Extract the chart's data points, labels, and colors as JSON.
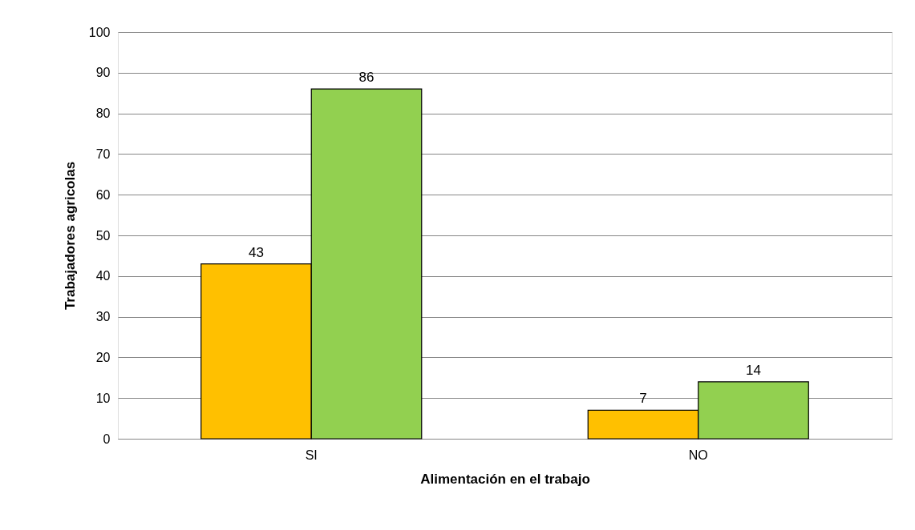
{
  "chart_data": {
    "type": "bar",
    "xlabel": "Alimentación en el trabajo",
    "ylabel": "Trabajadores agricolas",
    "categories": [
      "SI",
      "NO"
    ],
    "series": [
      {
        "color": "#ffc000",
        "values": [
          43,
          7
        ]
      },
      {
        "color": "#92d050",
        "values": [
          86,
          14
        ]
      }
    ],
    "ylim": [
      0,
      100
    ],
    "yticks": [
      0,
      10,
      20,
      30,
      40,
      50,
      60,
      70,
      80,
      90,
      100
    ],
    "grid": "y",
    "data_labels": true
  }
}
